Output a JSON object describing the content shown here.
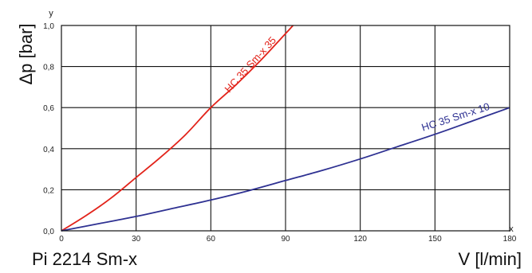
{
  "chart_data": {
    "type": "line",
    "title": "Pi 2214 Sm-x",
    "xlabel": "V [l/min]",
    "ylabel": "Δp [bar]",
    "x_axis_letter": "x",
    "y_axis_letter": "y",
    "xlim": [
      0,
      180
    ],
    "ylim": [
      0,
      1.0
    ],
    "x_ticks": [
      0,
      30,
      60,
      90,
      120,
      150,
      180
    ],
    "x_tick_labels": [
      "0",
      "30",
      "60",
      "90",
      "120",
      "150",
      "180"
    ],
    "y_ticks": [
      0,
      0.2,
      0.4,
      0.6,
      0.8,
      1.0
    ],
    "y_tick_labels": [
      "0,0",
      "0,2",
      "0,4",
      "0,6",
      "0,8",
      "1,0"
    ],
    "grid": true,
    "series": [
      {
        "name": "HC 35 Sm-x 35",
        "color": "#e2231a",
        "x": [
          0,
          10,
          20,
          30,
          40,
          50,
          60,
          70,
          80,
          90,
          93
        ],
        "y": [
          0,
          0.075,
          0.16,
          0.26,
          0.36,
          0.47,
          0.6,
          0.71,
          0.83,
          0.96,
          1.0
        ]
      },
      {
        "name": "HC 35 Sm-x 10",
        "color": "#2e3192",
        "x": [
          0,
          15,
          30,
          45,
          60,
          75,
          90,
          105,
          120,
          135,
          150,
          165,
          180
        ],
        "y": [
          0,
          0.035,
          0.07,
          0.11,
          0.15,
          0.195,
          0.245,
          0.295,
          0.35,
          0.41,
          0.47,
          0.535,
          0.6
        ]
      }
    ]
  }
}
